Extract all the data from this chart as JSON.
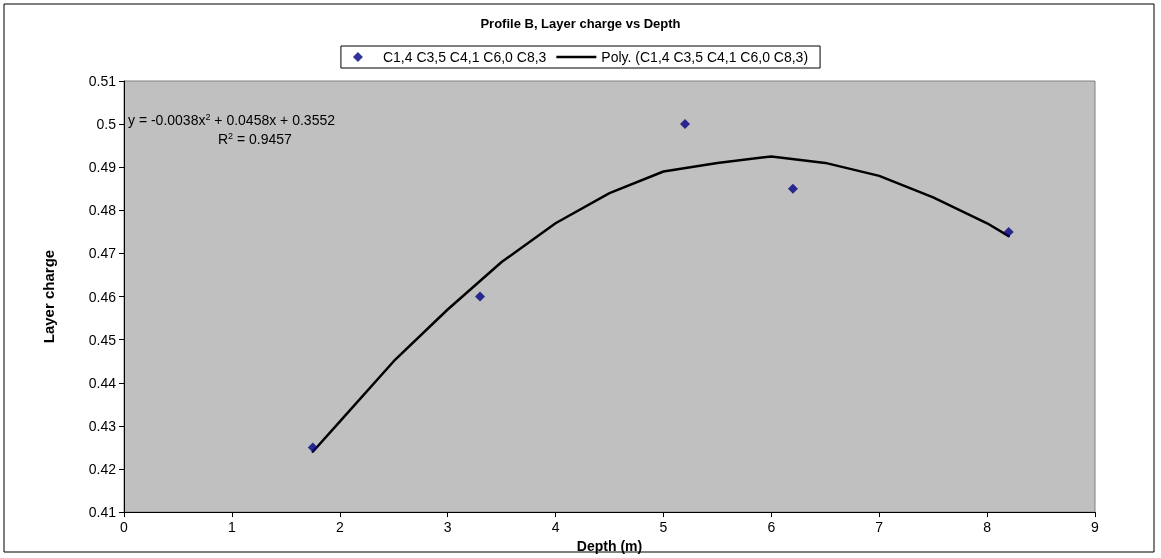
{
  "chart_data": {
    "type": "scatter",
    "title": "Profile B, Layer charge vs Depth",
    "xlabel": "Depth (m)",
    "ylabel": "Layer charge",
    "annotations": [
      "y = -0.0038x$^{2}$ + 0.0458x + 0.3552",
      "R$^{2}$ = 0.9457"
    ],
    "series": [
      {
        "name": "C1,4 C3,5 C4,1 C6,0 C8,3",
        "color": "#000080",
        "marker": "diamond",
        "x": [
          1.75,
          3.3,
          5.2,
          6.2,
          8.2
        ],
        "values": [
          0.425,
          0.46,
          0.5,
          0.485,
          0.475
        ]
      },
      {
        "name": "Poly. (C1,4 C3,5 C4,1 C6,0 C8,3)",
        "type": "line",
        "color": "#000000",
        "marker": "none",
        "line_style": "solid",
        "x": [
          1.75,
          2,
          2.5,
          3,
          3.5,
          4,
          4.5,
          5,
          5.5,
          6,
          6.5,
          7,
          7.5,
          8,
          8.2
        ],
        "values": [
          0.424,
          0.431,
          0.445,
          0.457,
          0.468,
          0.477,
          0.484,
          0.489,
          0.491,
          0.4925,
          0.491,
          0.488,
          0.483,
          0.477,
          0.474
        ]
      }
    ],
    "xlim": [
      0,
      9
    ],
    "xticks": [
      0,
      1,
      2,
      3,
      4,
      5,
      6,
      7,
      8,
      9
    ],
    "ylim": [
      0.41,
      0.51
    ],
    "yticks": [
      0.41,
      0.42,
      0.43,
      0.44,
      0.45,
      0.46,
      0.47,
      0.48,
      0.49,
      0.5,
      0.51
    ],
    "grid": false,
    "legend": "top"
  }
}
